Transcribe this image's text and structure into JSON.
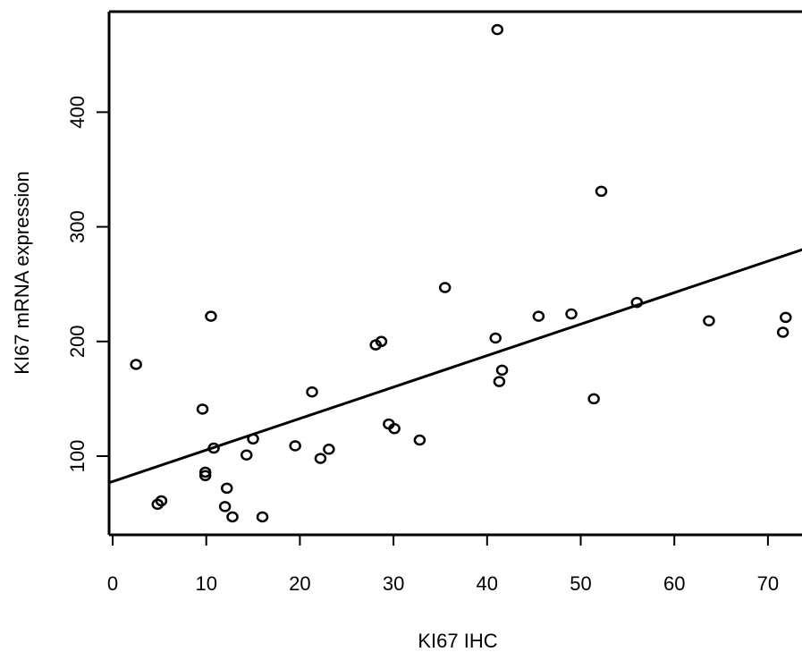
{
  "chart_data": {
    "type": "scatter",
    "title": "",
    "xlabel": "KI67 IHC",
    "ylabel": "KI67 mRNA expression",
    "xlim": [
      -0.5,
      74
    ],
    "ylim": [
      32,
      490
    ],
    "x_ticks": [
      0,
      10,
      20,
      30,
      40,
      50,
      60,
      70
    ],
    "y_ticks": [
      100,
      200,
      300,
      400
    ],
    "x_tick_labels": [
      "0",
      "10",
      "20",
      "30",
      "40",
      "50",
      "60",
      "70"
    ],
    "y_tick_labels": [
      "100",
      "200",
      "300",
      "400"
    ],
    "grid": false,
    "points": [
      {
        "x": 2.5,
        "y": 180
      },
      {
        "x": 4.8,
        "y": 58
      },
      {
        "x": 5.2,
        "y": 61
      },
      {
        "x": 9.6,
        "y": 141
      },
      {
        "x": 9.9,
        "y": 83
      },
      {
        "x": 9.9,
        "y": 86
      },
      {
        "x": 10.5,
        "y": 222
      },
      {
        "x": 10.8,
        "y": 107
      },
      {
        "x": 12.0,
        "y": 56
      },
      {
        "x": 12.2,
        "y": 72
      },
      {
        "x": 12.8,
        "y": 47
      },
      {
        "x": 14.3,
        "y": 101
      },
      {
        "x": 15.0,
        "y": 115
      },
      {
        "x": 16.0,
        "y": 47
      },
      {
        "x": 19.5,
        "y": 109
      },
      {
        "x": 21.3,
        "y": 156
      },
      {
        "x": 22.2,
        "y": 98
      },
      {
        "x": 23.1,
        "y": 106
      },
      {
        "x": 28.1,
        "y": 197
      },
      {
        "x": 28.7,
        "y": 200
      },
      {
        "x": 29.5,
        "y": 128
      },
      {
        "x": 30.1,
        "y": 124
      },
      {
        "x": 32.8,
        "y": 114
      },
      {
        "x": 35.5,
        "y": 247
      },
      {
        "x": 40.9,
        "y": 203
      },
      {
        "x": 41.1,
        "y": 472
      },
      {
        "x": 41.3,
        "y": 165
      },
      {
        "x": 41.6,
        "y": 175
      },
      {
        "x": 45.5,
        "y": 222
      },
      {
        "x": 49.0,
        "y": 224
      },
      {
        "x": 51.4,
        "y": 150
      },
      {
        "x": 52.2,
        "y": 331
      },
      {
        "x": 56.0,
        "y": 234
      },
      {
        "x": 63.7,
        "y": 218
      },
      {
        "x": 71.6,
        "y": 208
      },
      {
        "x": 71.9,
        "y": 221
      }
    ],
    "regression_line": {
      "x": [
        -0.5,
        74
      ],
      "y": [
        76.5,
        281
      ]
    }
  }
}
